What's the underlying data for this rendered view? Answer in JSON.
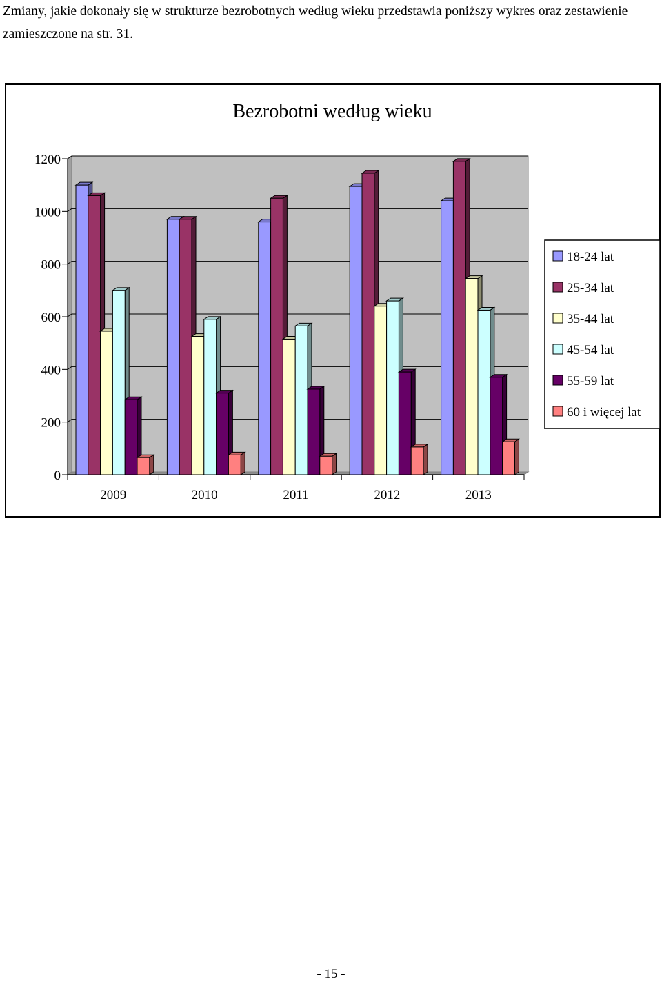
{
  "document": {
    "intro_text": "Zmiany, jakie dokonały się w strukturze bezrobotnych według wieku przedstawia poniższy wykres oraz zestawienie zamieszczone na str. 31.",
    "page_number": "- 15 -"
  },
  "chart_data": {
    "type": "bar",
    "style": "3d-clustered-column",
    "title": "Bezrobotni według wieku",
    "xlabel": "",
    "ylabel": "",
    "categories": [
      "2009",
      "2010",
      "2011",
      "2012",
      "2013"
    ],
    "ylim": [
      0,
      1200
    ],
    "yticks": [
      "0",
      "200",
      "400",
      "600",
      "800",
      "1000",
      "1200"
    ],
    "grid": true,
    "legend_position": "right",
    "plot_background": "#c0c0c0",
    "series": [
      {
        "name": "18-24 lat",
        "color": "#9999ff",
        "values": [
          1100,
          970,
          960,
          1095,
          1040
        ]
      },
      {
        "name": "25-34 lat",
        "color": "#993366",
        "values": [
          1060,
          970,
          1050,
          1145,
          1190
        ]
      },
      {
        "name": "35-44 lat",
        "color": "#ffffcc",
        "values": [
          545,
          525,
          515,
          640,
          745
        ]
      },
      {
        "name": "45-54 lat",
        "color": "#ccffff",
        "values": [
          700,
          590,
          565,
          660,
          625
        ]
      },
      {
        "name": "55-59 lat",
        "color": "#660066",
        "values": [
          285,
          310,
          325,
          390,
          370
        ]
      },
      {
        "name": "60 i więcej lat",
        "color": "#ff8080",
        "values": [
          65,
          75,
          70,
          105,
          125
        ]
      }
    ]
  }
}
